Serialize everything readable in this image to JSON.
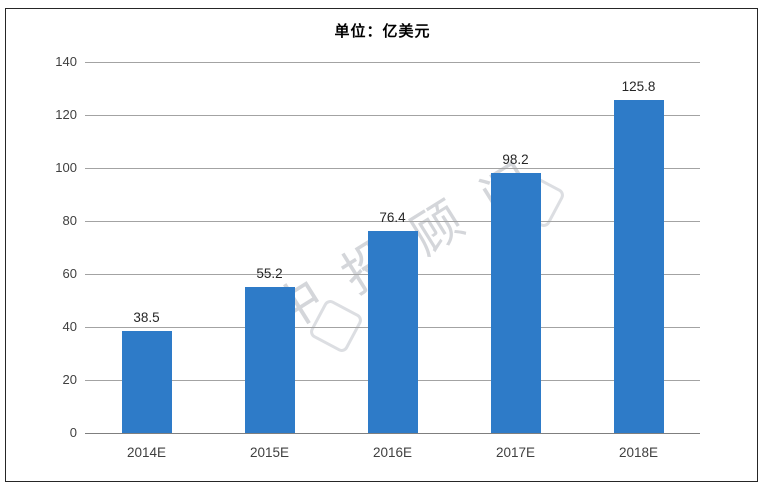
{
  "chart_data": {
    "type": "bar",
    "title": "单位：亿美元",
    "categories": [
      "2014E",
      "2015E",
      "2016E",
      "2017E",
      "2018E"
    ],
    "values": [
      38.5,
      55.2,
      76.4,
      98.2,
      125.8
    ],
    "data_labels": [
      "38.5",
      "55.2",
      "76.4",
      "98.2",
      "125.8"
    ],
    "xlabel": "",
    "ylabel": "",
    "ylim": [
      0,
      140
    ],
    "ytick_step": 20,
    "ytick_labels": [
      "0",
      "20",
      "40",
      "60",
      "80",
      "100",
      "120",
      "140"
    ],
    "grid": true,
    "legend_position": "none",
    "bar_color": "#2E7BC8",
    "gridline_color": "#A3A3A3",
    "axis_line_color": "#7F7F7F",
    "value_label_color": "#262626",
    "tick_label_color": "#404040",
    "watermark_text": "中投顾问"
  }
}
